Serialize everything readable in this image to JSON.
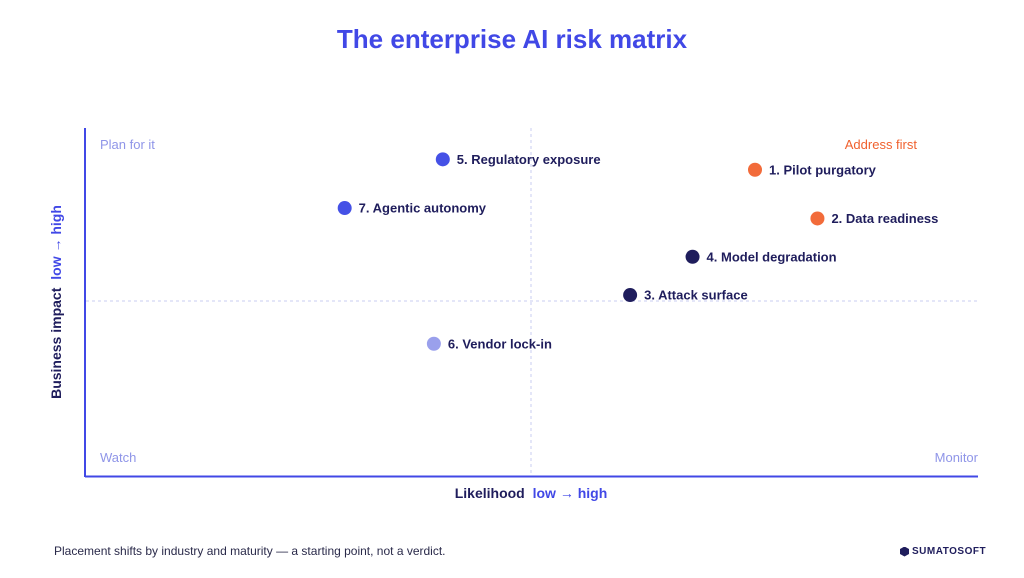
{
  "title": "The enterprise AI risk matrix",
  "colors": {
    "title": "#4148e6",
    "axis": "#1f1d5c",
    "axis_accent": "#4148e6",
    "quadrant_label": "#8f95e8",
    "address_first": "#f0612e",
    "critical": "#f26b3a",
    "high": "#1f1d5c",
    "medium": "#4551e6",
    "low": "#9aa0ec"
  },
  "chart_data": {
    "type": "scatter",
    "xlabel": "Likelihood",
    "xlabel_scale": "low → high",
    "ylabel": "Business impact",
    "ylabel_scale": "low → high",
    "xlim": [
      0,
      1
    ],
    "ylim": [
      0,
      1
    ],
    "grid": false,
    "quadrant_dividers": {
      "x": 0.5,
      "y": 0.5
    },
    "quadrants": {
      "top_left": "Plan for it",
      "top_right": "Address first",
      "bottom_left": "Watch",
      "bottom_right": "Monitor"
    },
    "points": [
      {
        "label": "1. Pilot purgatory",
        "x": 0.75,
        "y": 0.88,
        "color": "#f26b3a"
      },
      {
        "label": "2. Data readiness",
        "x": 0.82,
        "y": 0.74,
        "color": "#f26b3a"
      },
      {
        "label": "3. Attack surface",
        "x": 0.61,
        "y": 0.52,
        "color": "#1f1d5c"
      },
      {
        "label": "4. Model degradation",
        "x": 0.68,
        "y": 0.63,
        "color": "#1f1d5c"
      },
      {
        "label": "5. Regulatory exposure",
        "x": 0.4,
        "y": 0.91,
        "color": "#4551e6"
      },
      {
        "label": "6. Vendor lock-in",
        "x": 0.39,
        "y": 0.38,
        "color": "#9aa0ec"
      },
      {
        "label": "7. Agentic autonomy",
        "x": 0.29,
        "y": 0.77,
        "color": "#4551e6"
      }
    ]
  },
  "footnote": "Placement shifts by industry and maturity — a starting point, not a verdict.",
  "logo": "SUMATOSOFT"
}
